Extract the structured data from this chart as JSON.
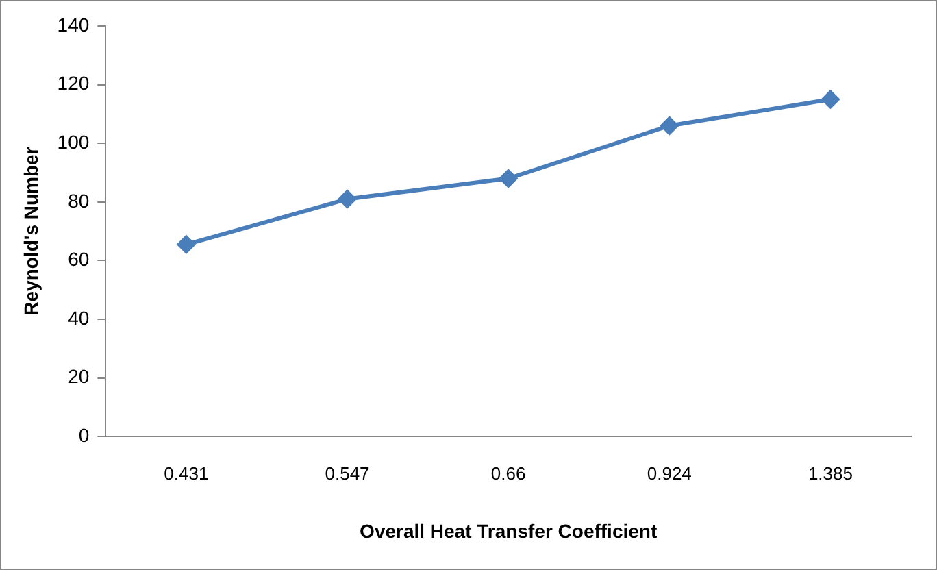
{
  "chart_data": {
    "type": "line",
    "xlabel": "Overall Heat Transfer Coefficient",
    "ylabel": "Reynold's Number",
    "categories": [
      "0.431",
      "0.547",
      "0.66",
      "0.924",
      "1.385"
    ],
    "series": [
      {
        "color": "#4a7ebb",
        "values": [
          65.5,
          81,
          88,
          106,
          115
        ]
      }
    ],
    "ylim": [
      0,
      140
    ],
    "yticks": [
      0,
      20,
      40,
      60,
      80,
      100,
      120,
      140
    ],
    "grid": false,
    "legend": false,
    "marker": "diamond",
    "line_style": "solid"
  }
}
